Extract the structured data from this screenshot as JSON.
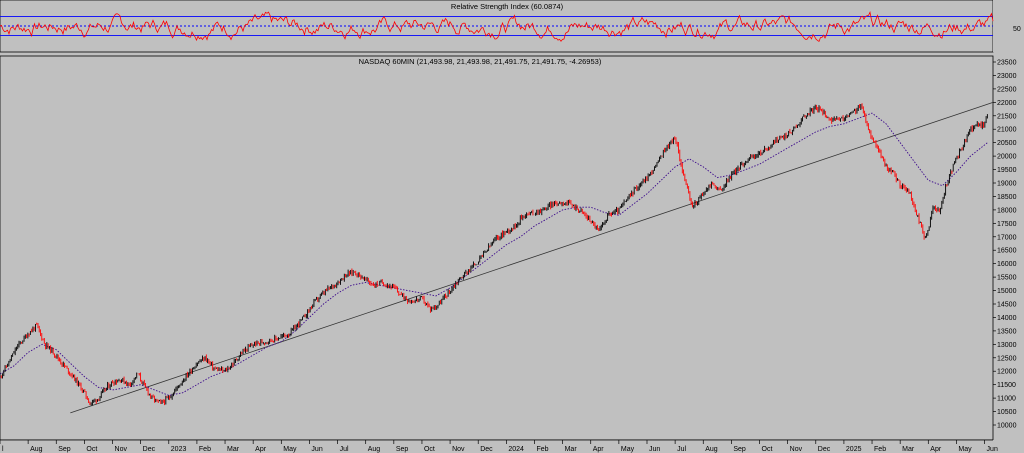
{
  "chart_data": [
    {
      "type": "line",
      "title": "Relative Strength Index (60.0874)",
      "series": [
        {
          "name": "",
          "color": "#ff0000"
        }
      ],
      "ylim": [
        0,
        100
      ],
      "reference_lines": [
        30,
        50,
        70
      ],
      "reference_color": "#0000ff",
      "y_tick_labels": [
        "50"
      ],
      "last_value": 60.0874
    },
    {
      "type": "line",
      "title": "NASDAQ 60MIN (21,493.98, 21,493.98, 21,491.75, 21,491.75, -4.26953)",
      "ylim": [
        9800,
        23600
      ],
      "y_ticks": [
        10000,
        10500,
        11000,
        11500,
        12000,
        12500,
        13000,
        13500,
        14000,
        14500,
        15000,
        15500,
        16000,
        16500,
        17000,
        17500,
        18000,
        18500,
        19000,
        19500,
        20000,
        20500,
        21000,
        21500,
        22000,
        22500,
        23000,
        23500
      ],
      "y_tick_labels": [
        "10000",
        "10500",
        "11000",
        "11500",
        "12000",
        "12500",
        "13000",
        "13500",
        "14000",
        "14500",
        "15000",
        "15500",
        "16000",
        "16500",
        "17000",
        "17500",
        "18000",
        "18500",
        "19000",
        "19500",
        "20000",
        "20500",
        "21000",
        "21500",
        "22000",
        "22500",
        "23000",
        "23500"
      ],
      "x_tick_labels": [
        "l",
        "Aug",
        "Sep",
        "Oct",
        "Nov",
        "Dec",
        "2023",
        "Feb",
        "Mar",
        "Apr",
        "May",
        "Jun",
        "Jul",
        "Aug",
        "Sep",
        "Oct",
        "Nov",
        "Dec",
        "2024",
        "Feb",
        "Mar",
        "Apr",
        "May",
        "Jun",
        "Jul",
        "Aug",
        "Sep",
        "Oct",
        "Nov",
        "Dec",
        "2025",
        "Feb",
        "Mar",
        "Apr",
        "May",
        "Jun"
      ],
      "x_tick_months": [
        0,
        1,
        2,
        3,
        4,
        5,
        6,
        7,
        8,
        9,
        10,
        11,
        12,
        13,
        14,
        15,
        16,
        17,
        18,
        19,
        20,
        21,
        22,
        23,
        24,
        25,
        26,
        27,
        28,
        29,
        30,
        31,
        32,
        33,
        34,
        35
      ],
      "xlim_months": [
        0,
        35.3
      ],
      "series": [
        {
          "name": "",
          "style": "candlestick",
          "color": "#000000",
          "down_color": "#ff0000",
          "x_months": [
            0,
            0.3,
            0.6,
            1.0,
            1.3,
            1.6,
            1.9,
            2.2,
            2.6,
            3.0,
            3.2,
            3.5,
            3.8,
            4.0,
            4.3,
            4.6,
            4.9,
            5.1,
            5.4,
            5.7,
            6.0,
            6.3,
            6.6,
            7.0,
            7.3,
            7.6,
            8.0,
            8.3,
            8.6,
            9.0,
            9.4,
            9.8,
            10.3,
            10.8,
            11.2,
            11.6,
            12.0,
            12.3,
            12.6,
            13.0,
            13.3,
            13.6,
            14.0,
            14.3,
            14.6,
            15.0,
            15.3,
            15.6,
            16.0,
            16.3,
            16.6,
            17.0,
            17.3,
            17.6,
            18.0,
            18.3,
            18.6,
            19.0,
            19.3,
            19.6,
            20.0,
            20.3,
            20.6,
            21.0,
            21.3,
            21.6,
            22.0,
            22.3,
            22.6,
            23.0,
            23.3,
            23.6,
            24.0,
            24.3,
            24.6,
            25.0,
            25.3,
            25.6,
            26.0,
            26.3,
            26.6,
            27.0,
            27.3,
            27.6,
            28.0,
            28.3,
            28.6,
            29.0,
            29.3,
            29.6,
            30.0,
            30.3,
            30.6,
            30.9,
            31.2,
            31.5,
            31.8,
            32.0,
            32.3,
            32.6,
            32.9,
            33.0,
            33.2,
            33.4,
            33.6,
            33.8,
            34.0,
            34.2,
            34.5,
            34.7,
            34.9,
            35.1
          ],
          "close": [
            11800,
            12300,
            12900,
            13400,
            13700,
            13000,
            12700,
            12300,
            11800,
            11200,
            10800,
            11000,
            11400,
            11600,
            11700,
            11500,
            11900,
            11500,
            11000,
            10800,
            11000,
            11400,
            11800,
            12300,
            12500,
            12100,
            12000,
            12300,
            12700,
            13000,
            13100,
            13200,
            13400,
            14000,
            14600,
            15000,
            15300,
            15600,
            15700,
            15400,
            15200,
            15300,
            15100,
            14800,
            14600,
            14700,
            14300,
            14500,
            15000,
            15400,
            15700,
            16100,
            16500,
            16900,
            17200,
            17400,
            17800,
            17900,
            18000,
            18200,
            18300,
            18200,
            18000,
            17600,
            17200,
            17800,
            18000,
            18400,
            18800,
            19200,
            19600,
            20200,
            20700,
            19300,
            18100,
            18600,
            19000,
            18700,
            19300,
            19600,
            19900,
            20100,
            20300,
            20600,
            20800,
            21100,
            21500,
            21800,
            21600,
            21300,
            21400,
            21600,
            21900,
            20900,
            20300,
            19600,
            19300,
            18900,
            18700,
            17800,
            16900,
            17300,
            18200,
            17900,
            18800,
            19400,
            19900,
            20300,
            21000,
            21200,
            21100,
            21490
          ]
        },
        {
          "name": "",
          "style": "dotted",
          "color": "#3c0a8c",
          "x_months": [
            0,
            0.5,
            1.0,
            1.5,
            2.0,
            2.5,
            3.0,
            3.5,
            4.0,
            4.5,
            5.0,
            5.5,
            6.0,
            6.5,
            7.0,
            7.5,
            8.0,
            8.5,
            9.0,
            9.5,
            10.0,
            10.5,
            11.0,
            11.5,
            12.0,
            12.5,
            13.0,
            13.5,
            14.0,
            14.5,
            15.0,
            15.5,
            16.0,
            16.5,
            17.0,
            17.5,
            18.0,
            18.5,
            19.0,
            19.5,
            20.0,
            20.5,
            21.0,
            21.5,
            22.0,
            22.5,
            23.0,
            23.5,
            24.0,
            24.5,
            25.0,
            25.5,
            26.0,
            26.5,
            27.0,
            27.5,
            28.0,
            28.5,
            29.0,
            29.5,
            30.0,
            30.5,
            31.0,
            31.5,
            32.0,
            32.5,
            33.0,
            33.5,
            34.0,
            34.5,
            35.1
          ],
          "values": [
            11900,
            12200,
            12700,
            13000,
            12800,
            12300,
            11800,
            11400,
            11300,
            11400,
            11500,
            11300,
            11100,
            11200,
            11500,
            11800,
            12000,
            12300,
            12600,
            12900,
            13100,
            13500,
            14000,
            14500,
            14900,
            15200,
            15300,
            15200,
            15100,
            15000,
            14900,
            14800,
            15100,
            15500,
            15900,
            16300,
            16700,
            17000,
            17400,
            17700,
            18000,
            18100,
            18100,
            17900,
            17800,
            18200,
            18600,
            19100,
            19600,
            19900,
            19600,
            19200,
            19300,
            19500,
            19700,
            20000,
            20300,
            20600,
            20900,
            21100,
            21200,
            21400,
            21600,
            21200,
            20500,
            19800,
            19100,
            18900,
            19400,
            20000,
            20500
          ]
        },
        {
          "name": "",
          "style": "trendline",
          "color": "#333333",
          "x_months": [
            2.5,
            35.3
          ],
          "values": [
            10450,
            22000
          ]
        }
      ]
    }
  ]
}
